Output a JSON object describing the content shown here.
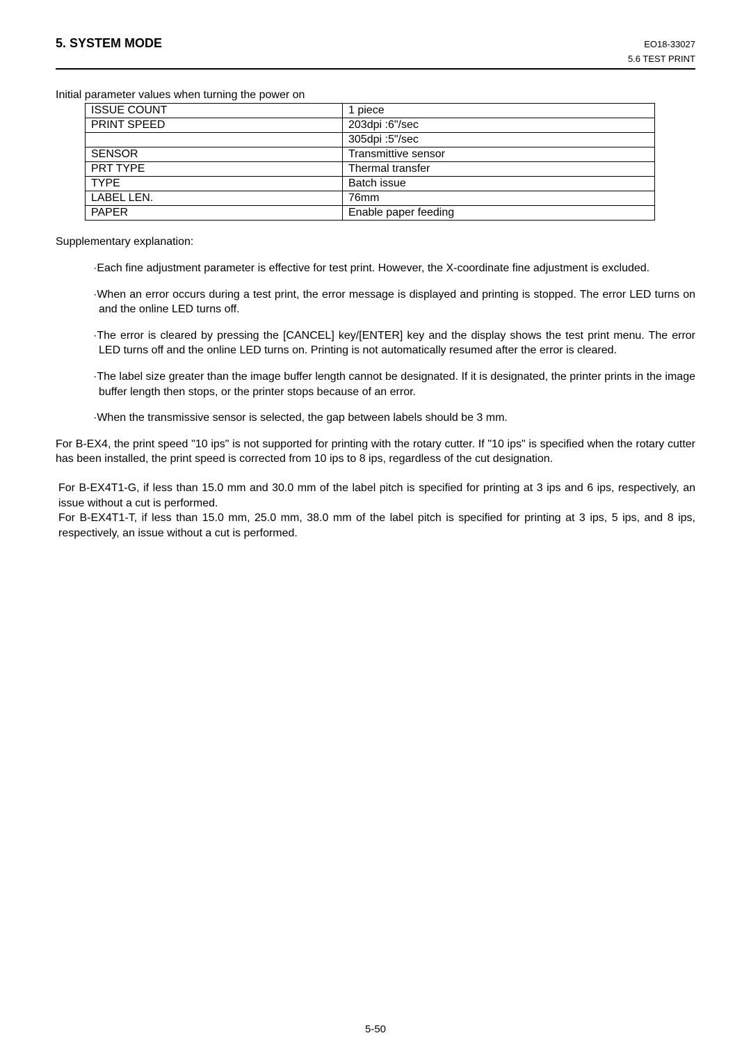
{
  "header": {
    "section_title": "5. SYSTEM MODE",
    "doc_code": "EO18-33027",
    "sub_section": "5.6 TEST PRINT"
  },
  "intro_line": "Initial parameter values when turning the power on",
  "table": {
    "rows": [
      {
        "left": "ISSUE COUNT",
        "right": "1 piece"
      },
      {
        "left": "PRINT SPEED",
        "right": "203dpi :6\"/sec"
      },
      {
        "left": "",
        "right": "305dpi :5\"/sec"
      },
      {
        "left": "SENSOR",
        "right": "Transmittive sensor"
      },
      {
        "left": "PRT TYPE",
        "right": "Thermal transfer"
      },
      {
        "left": "TYPE",
        "right": "Batch issue"
      },
      {
        "left": "LABEL LEN.",
        "right": "76mm"
      },
      {
        "left": "PAPER",
        "right": "Enable paper feeding"
      }
    ]
  },
  "supp_heading": "Supplementary explanation:",
  "bullets": {
    "b1": "·Each fine adjustment parameter is effective for test print.  However, the X-coordinate fine adjustment is excluded.",
    "b2": "·When an error occurs during a test print, the error message is displayed and printing is stopped. The error LED turns on and the online LED turns off.",
    "b3": "·The error is cleared by pressing the [CANCEL] key/[ENTER] key and the display shows the test print menu. The error LED turns off and the online LED turns on. Printing is not automatically resumed after the error is cleared.",
    "b4": "·The label size greater than the image buffer length cannot be designated.  If it is designated, the printer prints in the image buffer length then stops, or the printer stops because of an error.",
    "b5": "·When the transmissive sensor is selected, the gap between labels should be 3 mm."
  },
  "para1": "For B-EX4, the print speed \"10 ips\" is not supported for printing with the rotary cutter.  If \"10 ips\" is specified when the rotary cutter has been installed, the print speed is corrected from 10 ips to 8 ips, regardless of the cut designation.",
  "para2a": "For B-EX4T1-G, if less than 15.0 mm and 30.0 mm of the label pitch is specified for printing at 3 ips and 6 ips, respectively, an issue without a cut is performed.",
  "para2b": "For B-EX4T1-T, if less than 15.0 mm, 25.0 mm, 38.0 mm of the label pitch is specified for printing at 3 ips, 5 ips, and 8 ips, respectively, an issue without a cut is performed.",
  "page_number": "5-50"
}
